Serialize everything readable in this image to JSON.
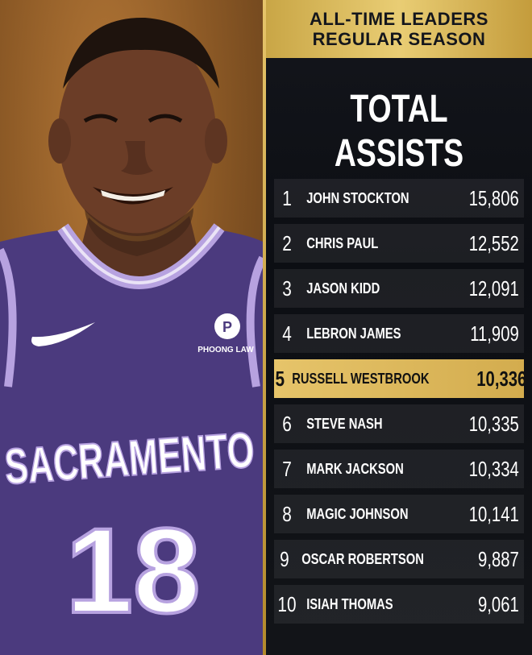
{
  "banner": {
    "line1": "ALL-TIME LEADERS",
    "line2": "REGULAR SEASON"
  },
  "title": "TOTAL ASSISTS",
  "colors": {
    "gold": "#e0bd5f",
    "jersey_purple": "#4b3a7e",
    "jersey_trim": "#b7a2e0"
  },
  "jersey": {
    "team_text": "SACRAMENTO",
    "number": "18",
    "sponsor": "PHOONG LAW"
  },
  "leaders": [
    {
      "rank": "1",
      "name": "JOHN STOCKTON",
      "value": "15,806"
    },
    {
      "rank": "2",
      "name": "CHRIS PAUL",
      "value": "12,552"
    },
    {
      "rank": "3",
      "name": "JASON KIDD",
      "value": "12,091"
    },
    {
      "rank": "4",
      "name": "LEBRON JAMES",
      "value": "11,909"
    },
    {
      "rank": "5",
      "name": "RUSSELL WESTBROOK",
      "value": "10,336",
      "highlight": true
    },
    {
      "rank": "6",
      "name": "STEVE NASH",
      "value": "10,335"
    },
    {
      "rank": "7",
      "name": "MARK JACKSON",
      "value": "10,334"
    },
    {
      "rank": "8",
      "name": "MAGIC JOHNSON",
      "value": "10,141"
    },
    {
      "rank": "9",
      "name": "OSCAR ROBERTSON",
      "value": "9,887"
    },
    {
      "rank": "10",
      "name": "ISIAH THOMAS",
      "value": "9,061"
    }
  ]
}
